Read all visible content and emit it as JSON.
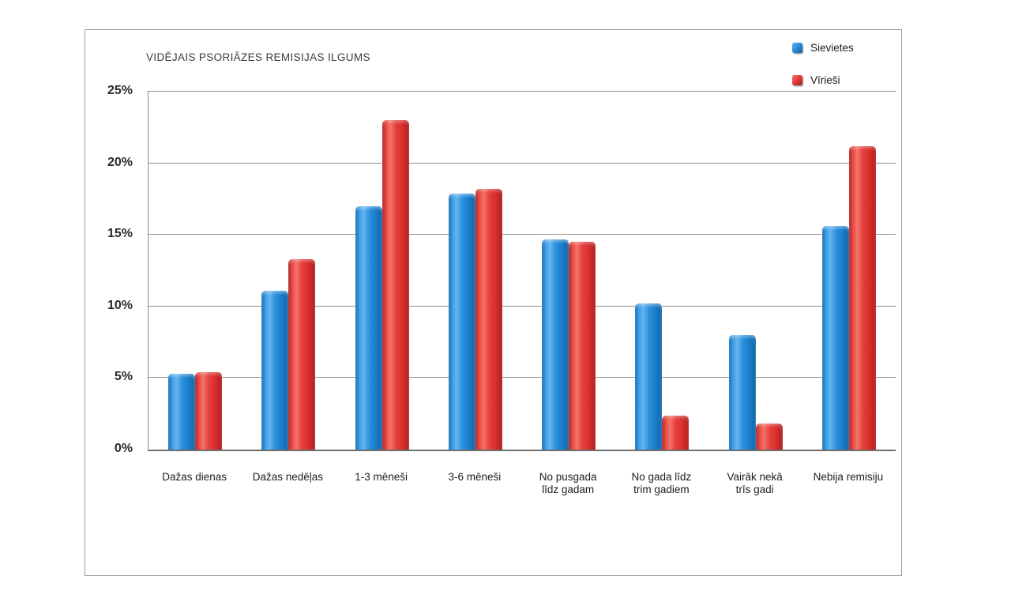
{
  "chart_data": {
    "type": "bar",
    "title": "VIDĒJAIS PSORIĀZES REMISIJAS ILGUMS",
    "categories": [
      "Dažas dienas",
      "Dažas nedēļas",
      "1-3 mēneši",
      "3-6 mēneši",
      "No pusgada līdz gadam",
      "No gada līdz trim gadiem",
      "Vairāk nekā trīs gadi",
      "Nebija remisiju"
    ],
    "category_lines": [
      [
        "Dažas dienas"
      ],
      [
        "Dažas nedēļas"
      ],
      [
        "1-3 mēneši"
      ],
      [
        "3-6 mēneši"
      ],
      [
        "No pusgada",
        "līdz gadam"
      ],
      [
        "No gada līdz",
        "trim gadiem"
      ],
      [
        "Vairāk nekā",
        "trīs gadi"
      ],
      [
        "Nebija remisiju"
      ]
    ],
    "series": [
      {
        "name": "Sievietes",
        "color": "#1e86d8",
        "values": [
          5.3,
          11.1,
          17.0,
          17.9,
          14.7,
          10.2,
          8.0,
          15.6
        ]
      },
      {
        "name": "Vīrieši",
        "color": "#e23b3b",
        "values": [
          5.4,
          13.3,
          23.0,
          18.2,
          14.5,
          2.4,
          1.8,
          21.2
        ]
      }
    ],
    "xlabel": "",
    "ylabel": "",
    "ylim": [
      0,
      25
    ],
    "yticks": [
      {
        "value": 0,
        "label": "0%"
      },
      {
        "value": 5,
        "label": "5%"
      },
      {
        "value": 10,
        "label": "10%"
      },
      {
        "value": 15,
        "label": "15%"
      },
      {
        "value": 20,
        "label": "20%"
      },
      {
        "value": 25,
        "label": "25%"
      }
    ],
    "grid": true,
    "legend_position": "top-right"
  }
}
